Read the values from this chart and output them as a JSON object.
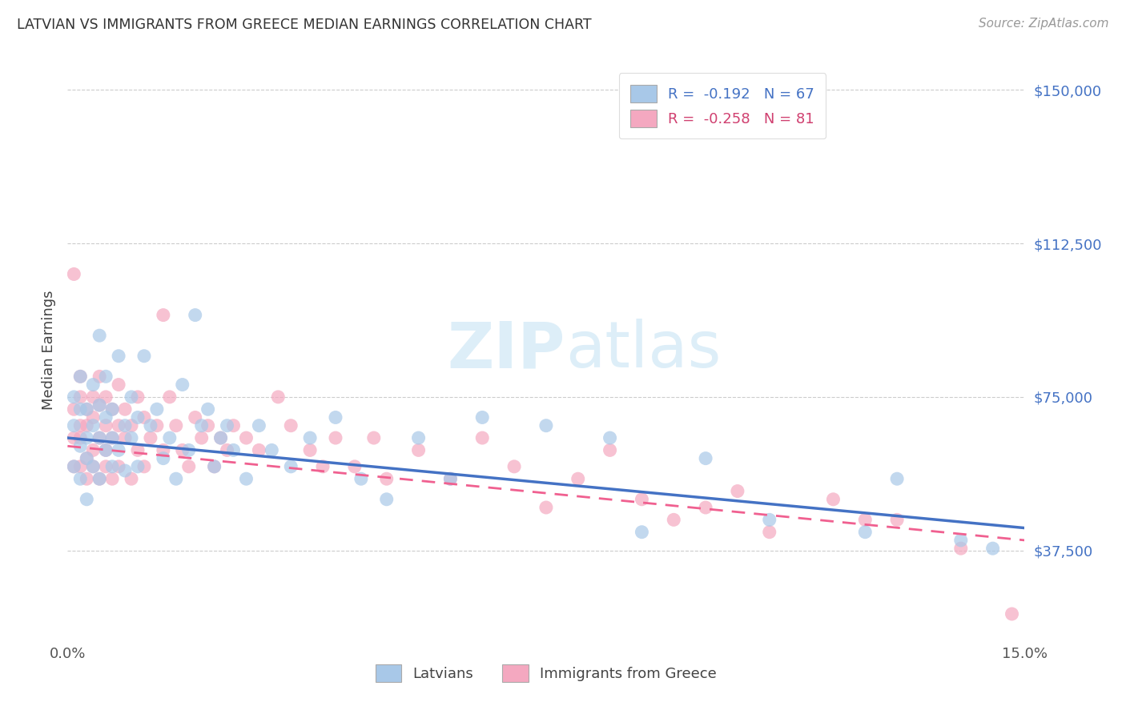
{
  "title": "LATVIAN VS IMMIGRANTS FROM GREECE MEDIAN EARNINGS CORRELATION CHART",
  "source": "Source: ZipAtlas.com",
  "ylabel": "Median Earnings",
  "y_ticks": [
    37500,
    75000,
    112500,
    150000
  ],
  "y_tick_labels": [
    "$37,500",
    "$75,000",
    "$112,500",
    "$150,000"
  ],
  "x_min": 0.0,
  "x_max": 0.15,
  "y_min": 15000,
  "y_max": 158000,
  "latvian_color": "#a8c8e8",
  "greece_color": "#f4a8c0",
  "latvian_line_color": "#4472c4",
  "greece_line_color": "#f06090",
  "legend_R_latvian": "R =  -0.192",
  "legend_N_latvian": "N = 67",
  "legend_R_greece": "R =  -0.258",
  "legend_N_greece": "N = 81",
  "watermark_zip": "ZIP",
  "watermark_atlas": "atlas",
  "latvians_label": "Latvians",
  "greece_label": "Immigrants from Greece",
  "latvian_scatter_x": [
    0.001,
    0.001,
    0.001,
    0.002,
    0.002,
    0.002,
    0.002,
    0.003,
    0.003,
    0.003,
    0.003,
    0.004,
    0.004,
    0.004,
    0.005,
    0.005,
    0.005,
    0.005,
    0.006,
    0.006,
    0.006,
    0.007,
    0.007,
    0.007,
    0.008,
    0.008,
    0.009,
    0.009,
    0.01,
    0.01,
    0.011,
    0.011,
    0.012,
    0.013,
    0.014,
    0.015,
    0.016,
    0.017,
    0.018,
    0.019,
    0.02,
    0.021,
    0.022,
    0.023,
    0.024,
    0.025,
    0.026,
    0.028,
    0.03,
    0.032,
    0.035,
    0.038,
    0.042,
    0.046,
    0.05,
    0.055,
    0.06,
    0.065,
    0.075,
    0.085,
    0.09,
    0.1,
    0.11,
    0.125,
    0.13,
    0.14,
    0.145
  ],
  "latvian_scatter_y": [
    68000,
    58000,
    75000,
    72000,
    55000,
    63000,
    80000,
    65000,
    60000,
    72000,
    50000,
    68000,
    78000,
    58000,
    65000,
    73000,
    55000,
    90000,
    62000,
    70000,
    80000,
    65000,
    72000,
    58000,
    85000,
    62000,
    68000,
    57000,
    75000,
    65000,
    70000,
    58000,
    85000,
    68000,
    72000,
    60000,
    65000,
    55000,
    78000,
    62000,
    95000,
    68000,
    72000,
    58000,
    65000,
    68000,
    62000,
    55000,
    68000,
    62000,
    58000,
    65000,
    70000,
    55000,
    50000,
    65000,
    55000,
    70000,
    68000,
    65000,
    42000,
    60000,
    45000,
    42000,
    55000,
    40000,
    38000
  ],
  "greece_scatter_x": [
    0.001,
    0.001,
    0.001,
    0.002,
    0.002,
    0.002,
    0.002,
    0.002,
    0.003,
    0.003,
    0.003,
    0.003,
    0.004,
    0.004,
    0.004,
    0.004,
    0.005,
    0.005,
    0.005,
    0.005,
    0.006,
    0.006,
    0.006,
    0.006,
    0.007,
    0.007,
    0.007,
    0.008,
    0.008,
    0.008,
    0.009,
    0.009,
    0.01,
    0.01,
    0.011,
    0.011,
    0.012,
    0.012,
    0.013,
    0.014,
    0.015,
    0.015,
    0.016,
    0.017,
    0.018,
    0.019,
    0.02,
    0.021,
    0.022,
    0.023,
    0.024,
    0.025,
    0.026,
    0.028,
    0.03,
    0.033,
    0.035,
    0.038,
    0.04,
    0.042,
    0.045,
    0.048,
    0.05,
    0.055,
    0.06,
    0.065,
    0.07,
    0.075,
    0.08,
    0.085,
    0.09,
    0.095,
    0.1,
    0.105,
    0.11,
    0.12,
    0.125,
    0.13,
    0.14,
    0.148,
    0.001
  ],
  "greece_scatter_y": [
    72000,
    58000,
    65000,
    68000,
    75000,
    58000,
    80000,
    65000,
    72000,
    60000,
    68000,
    55000,
    75000,
    62000,
    70000,
    58000,
    65000,
    73000,
    55000,
    80000,
    68000,
    62000,
    75000,
    58000,
    65000,
    72000,
    55000,
    68000,
    78000,
    58000,
    65000,
    72000,
    68000,
    55000,
    75000,
    62000,
    70000,
    58000,
    65000,
    68000,
    62000,
    95000,
    75000,
    68000,
    62000,
    58000,
    70000,
    65000,
    68000,
    58000,
    65000,
    62000,
    68000,
    65000,
    62000,
    75000,
    68000,
    62000,
    58000,
    65000,
    58000,
    65000,
    55000,
    62000,
    55000,
    65000,
    58000,
    48000,
    55000,
    62000,
    50000,
    45000,
    48000,
    52000,
    42000,
    50000,
    45000,
    45000,
    38000,
    22000,
    105000
  ],
  "latvian_trend_x0": 0.0,
  "latvian_trend_y0": 65000,
  "latvian_trend_x1": 0.15,
  "latvian_trend_y1": 43000,
  "greece_trend_x0": 0.0,
  "greece_trend_y0": 63000,
  "greece_trend_x1": 0.15,
  "greece_trend_y1": 40000
}
